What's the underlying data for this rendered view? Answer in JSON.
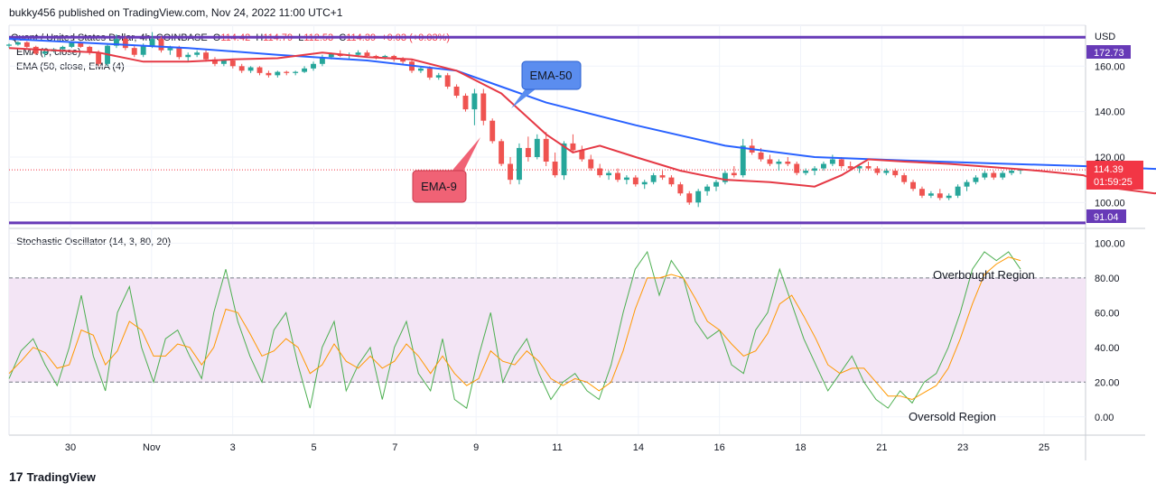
{
  "header": {
    "publisher_line": "bukky456 published on TradingView.com, Nov 24, 2022 11:00 UTC+1"
  },
  "symbol": {
    "name": "Quant / United States Dollar, 4h, COINBASE",
    "open_label": "O",
    "open": "114.42",
    "high_label": "H",
    "high": "114.79",
    "low_label": "L",
    "low": "112.53",
    "close_label": "C",
    "close": "114.39",
    "change": "+0.03 (+0.03%)"
  },
  "indicators": {
    "ema_fast": "EMA (9, close)",
    "ema_slow": "EMA (50, close, EMA (4)",
    "stochastic": "Stochastic Oscillator (14, 3, 80, 20)"
  },
  "annotations": {
    "ema50_callout": "EMA-50",
    "ema9_callout": "EMA-9",
    "overbought": "Overbought Region",
    "oversold": "Oversold Region"
  },
  "price_axis": {
    "currency": "USD",
    "ticks": [
      "160.00",
      "140.00",
      "120.00",
      "100.00"
    ],
    "resistance": "172.73",
    "support": "91.04",
    "last_price": "114.39",
    "countdown": "01:59:25"
  },
  "osc_axis": {
    "ticks": [
      "100.00",
      "80.00",
      "60.00",
      "40.00",
      "20.00",
      "0.00"
    ]
  },
  "time_axis": {
    "ticks": [
      "30",
      "Nov",
      "3",
      "5",
      "7",
      "9",
      "11",
      "14",
      "16",
      "18",
      "21",
      "23",
      "25"
    ]
  },
  "footer": {
    "brand": "TradingView",
    "mark": "17"
  },
  "colors": {
    "up": "#26a69a",
    "down": "#ef5350",
    "ema9": "#e53945",
    "ema50": "#2962ff",
    "level_line": "#673ab7",
    "stoch_k": "#4caf50",
    "stoch_d": "#ff9800",
    "band_fill": "#f3e5f5",
    "callout_blue": "#5b8def",
    "callout_red": "#f06275"
  },
  "chart_data": [
    {
      "type": "candlestick",
      "title": "Quant / United States Dollar, 4h, COINBASE",
      "ylim": [
        89,
        178
      ],
      "horizontal_levels": [
        172.73,
        91.04
      ],
      "last_price": 114.39,
      "ema_50": [
        [
          0,
          172
        ],
        [
          10,
          170
        ],
        [
          20,
          168
        ],
        [
          30,
          165
        ],
        [
          40,
          162.5
        ],
        [
          50,
          158
        ],
        [
          55,
          151
        ],
        [
          60,
          144
        ],
        [
          70,
          134
        ],
        [
          80,
          125
        ],
        [
          90,
          120
        ],
        [
          100,
          118.5
        ],
        [
          110,
          117.2
        ],
        [
          120,
          116
        ],
        [
          130,
          114.5
        ],
        [
          140,
          113
        ],
        [
          148,
          113
        ]
      ],
      "ema_9": [
        [
          0,
          168
        ],
        [
          10,
          166
        ],
        [
          15,
          162
        ],
        [
          20,
          162
        ],
        [
          25,
          163
        ],
        [
          30,
          163.5
        ],
        [
          35,
          166
        ],
        [
          40,
          164
        ],
        [
          45,
          163
        ],
        [
          50,
          158
        ],
        [
          55,
          148
        ],
        [
          60,
          130
        ],
        [
          63,
          122
        ],
        [
          66,
          125
        ],
        [
          70,
          120
        ],
        [
          75,
          114
        ],
        [
          80,
          110
        ],
        [
          85,
          109
        ],
        [
          90,
          107
        ],
        [
          93,
          112
        ],
        [
          96,
          119
        ],
        [
          100,
          118
        ],
        [
          105,
          117
        ],
        [
          110,
          115.5
        ],
        [
          115,
          114
        ],
        [
          120,
          112
        ],
        [
          124,
          106
        ],
        [
          128,
          104
        ],
        [
          132,
          107
        ],
        [
          138,
          110
        ],
        [
          144,
          111
        ],
        [
          148,
          113
        ]
      ],
      "candles": [
        [
          0,
          169,
          170,
          168,
          169.5
        ],
        [
          1,
          169.5,
          171,
          169,
          170.5
        ],
        [
          2,
          170.5,
          171,
          168,
          168.5
        ],
        [
          3,
          168.5,
          169,
          165,
          165.5
        ],
        [
          4,
          165.5,
          167,
          164,
          166.5
        ],
        [
          5,
          166.5,
          168,
          166,
          167.5
        ],
        [
          6,
          167.5,
          169,
          167,
          168.5
        ],
        [
          7,
          168.5,
          171,
          168,
          170.5
        ],
        [
          8,
          170.5,
          171,
          168,
          168.5
        ],
        [
          9,
          168.5,
          169,
          165,
          166
        ],
        [
          10,
          166,
          167,
          160,
          161
        ],
        [
          11,
          161,
          170,
          160,
          169
        ],
        [
          12,
          169,
          174,
          168,
          172
        ],
        [
          13,
          172,
          173,
          167,
          168
        ],
        [
          14,
          168,
          169,
          164,
          165
        ],
        [
          15,
          165,
          170,
          164,
          169
        ],
        [
          16,
          169,
          175,
          168,
          172
        ],
        [
          17,
          172,
          173,
          166,
          167
        ],
        [
          18,
          167,
          169,
          165,
          168
        ],
        [
          19,
          168,
          169,
          163,
          164
        ],
        [
          20,
          164,
          166,
          162,
          165
        ],
        [
          21,
          165,
          167,
          164,
          166
        ],
        [
          22,
          166,
          167,
          162,
          163
        ],
        [
          23,
          163,
          164,
          160,
          161
        ],
        [
          24,
          161,
          163,
          160,
          162.5
        ],
        [
          25,
          162.5,
          163,
          159,
          160
        ],
        [
          26,
          160,
          161,
          157,
          158
        ],
        [
          27,
          158,
          160,
          157,
          159.5
        ],
        [
          28,
          159.5,
          160,
          156,
          157
        ],
        [
          29,
          157,
          158,
          155,
          156
        ],
        [
          30,
          156,
          158,
          155,
          157.5
        ],
        [
          31,
          157.5,
          158,
          156,
          157
        ],
        [
          32,
          157,
          158,
          156,
          157.5
        ],
        [
          33,
          157.5,
          160,
          157,
          159
        ],
        [
          34,
          159,
          162,
          158,
          161
        ],
        [
          35,
          161,
          165,
          160,
          164
        ],
        [
          36,
          164,
          166,
          163,
          165.5
        ],
        [
          37,
          165.5,
          167,
          164,
          164.5
        ],
        [
          38,
          164.5,
          166,
          163,
          165
        ],
        [
          39,
          165,
          167,
          164,
          166
        ],
        [
          40,
          166,
          167,
          164,
          164.5
        ],
        [
          41,
          164.5,
          165,
          163,
          164
        ],
        [
          42,
          164,
          165,
          163,
          164.5
        ],
        [
          43,
          164.5,
          165,
          162,
          163
        ],
        [
          44,
          163,
          164,
          161,
          162
        ],
        [
          45,
          162,
          163,
          157,
          158
        ],
        [
          46,
          158,
          160,
          157,
          159
        ],
        [
          47,
          159,
          160,
          154,
          155
        ],
        [
          48,
          155,
          157,
          154,
          156
        ],
        [
          49,
          156,
          157,
          150,
          151
        ],
        [
          50,
          151,
          152,
          146,
          147
        ],
        [
          51,
          147,
          148,
          140,
          141
        ],
        [
          52,
          141,
          150,
          134,
          148
        ],
        [
          53,
          148,
          150,
          134,
          136
        ],
        [
          54,
          136,
          137,
          126,
          127
        ],
        [
          55,
          127,
          128,
          116,
          117
        ],
        [
          56,
          117,
          120,
          108,
          110
        ],
        [
          57,
          110,
          126,
          108,
          124
        ],
        [
          58,
          124,
          129,
          118,
          120
        ],
        [
          59,
          120,
          130,
          119,
          128
        ],
        [
          60,
          128,
          131,
          116,
          118
        ],
        [
          61,
          118,
          122,
          111,
          112
        ],
        [
          62,
          112,
          127,
          110,
          126
        ],
        [
          63,
          126,
          130,
          122,
          123
        ],
        [
          64,
          123,
          125,
          118,
          119
        ],
        [
          65,
          119,
          121,
          114,
          115
        ],
        [
          66,
          115,
          117,
          111,
          112
        ],
        [
          67,
          112,
          114,
          110,
          113
        ],
        [
          68,
          113,
          115,
          109,
          110
        ],
        [
          69,
          110,
          112,
          108,
          111
        ],
        [
          70,
          111,
          112,
          107,
          108
        ],
        [
          71,
          108,
          110,
          106,
          109
        ],
        [
          72,
          109,
          113,
          108,
          112
        ],
        [
          73,
          112,
          114,
          110,
          111
        ],
        [
          74,
          111,
          112,
          107,
          108
        ],
        [
          75,
          108,
          109,
          103,
          104
        ],
        [
          76,
          104,
          105,
          99,
          100
        ],
        [
          77,
          100,
          106,
          98,
          105
        ],
        [
          78,
          105,
          108,
          103,
          107
        ],
        [
          79,
          107,
          110,
          105,
          109
        ],
        [
          80,
          109,
          114,
          108,
          113
        ],
        [
          81,
          113,
          116,
          111,
          112
        ],
        [
          82,
          112,
          128,
          111,
          125
        ],
        [
          83,
          125,
          128,
          121,
          122
        ],
        [
          84,
          122,
          124,
          118,
          119
        ],
        [
          85,
          119,
          121,
          116,
          117
        ],
        [
          86,
          117,
          119,
          114,
          118
        ],
        [
          87,
          118,
          120,
          116,
          117
        ],
        [
          88,
          117,
          118,
          112,
          113
        ],
        [
          89,
          113,
          115,
          112,
          114
        ],
        [
          90,
          114,
          116,
          112,
          115
        ],
        [
          91,
          115,
          118,
          114,
          117
        ],
        [
          92,
          117,
          121,
          116,
          119
        ],
        [
          93,
          119,
          120,
          115,
          116
        ],
        [
          94,
          116,
          118,
          114,
          115
        ],
        [
          95,
          115,
          117,
          113,
          116
        ],
        [
          96,
          116,
          118,
          114,
          115
        ],
        [
          97,
          115,
          116,
          112,
          113
        ],
        [
          98,
          113,
          115,
          112,
          114
        ],
        [
          99,
          114,
          115,
          111,
          112
        ],
        [
          100,
          112,
          113,
          108,
          109
        ],
        [
          101,
          109,
          110,
          105,
          106
        ],
        [
          102,
          106,
          107,
          102,
          103
        ],
        [
          103,
          103,
          105,
          102,
          104
        ],
        [
          104,
          104,
          106,
          101,
          102
        ],
        [
          105,
          102,
          104,
          101,
          103
        ],
        [
          106,
          103,
          108,
          102,
          107
        ],
        [
          107,
          107,
          110,
          105,
          109
        ],
        [
          108,
          109,
          112,
          108,
          111
        ],
        [
          109,
          111,
          114,
          110,
          113
        ],
        [
          110,
          113,
          114,
          110,
          111
        ],
        [
          111,
          111,
          114,
          110,
          113
        ],
        [
          112,
          113,
          115,
          112,
          114
        ],
        [
          113,
          114,
          115,
          112.5,
          114.4
        ]
      ]
    },
    {
      "type": "line",
      "title": "Stochastic Oscillator (14, 3, 80, 20)",
      "ylim": [
        -10,
        108
      ],
      "bands": {
        "upper": 80,
        "lower": 20
      },
      "series": [
        {
          "name": "%K",
          "values": [
            22,
            38,
            45,
            30,
            18,
            40,
            70,
            35,
            15,
            60,
            75,
            40,
            20,
            45,
            50,
            35,
            22,
            60,
            85,
            55,
            35,
            20,
            50,
            60,
            30,
            5,
            40,
            55,
            15,
            30,
            40,
            10,
            40,
            55,
            25,
            15,
            45,
            10,
            5,
            35,
            60,
            20,
            35,
            45,
            25,
            10,
            20,
            25,
            15,
            10,
            30,
            60,
            85,
            95,
            70,
            90,
            80,
            55,
            45,
            50,
            30,
            25,
            50,
            60,
            85,
            65,
            45,
            30,
            15,
            25,
            35,
            20,
            10,
            5,
            15,
            8,
            20,
            25,
            40,
            60,
            85,
            95,
            90,
            95,
            85
          ]
        },
        {
          "name": "%D",
          "values": [
            25,
            32,
            40,
            37,
            28,
            30,
            50,
            47,
            30,
            38,
            55,
            50,
            35,
            35,
            42,
            40,
            30,
            40,
            62,
            60,
            48,
            35,
            38,
            45,
            40,
            25,
            30,
            42,
            32,
            28,
            35,
            28,
            32,
            42,
            35,
            25,
            35,
            25,
            18,
            22,
            38,
            32,
            30,
            38,
            32,
            22,
            18,
            22,
            20,
            15,
            20,
            38,
            62,
            80,
            80,
            82,
            80,
            68,
            55,
            50,
            42,
            35,
            38,
            48,
            65,
            70,
            58,
            45,
            30,
            25,
            28,
            28,
            20,
            12,
            12,
            10,
            14,
            18,
            28,
            45,
            65,
            82,
            88,
            92,
            90
          ]
        }
      ]
    }
  ]
}
